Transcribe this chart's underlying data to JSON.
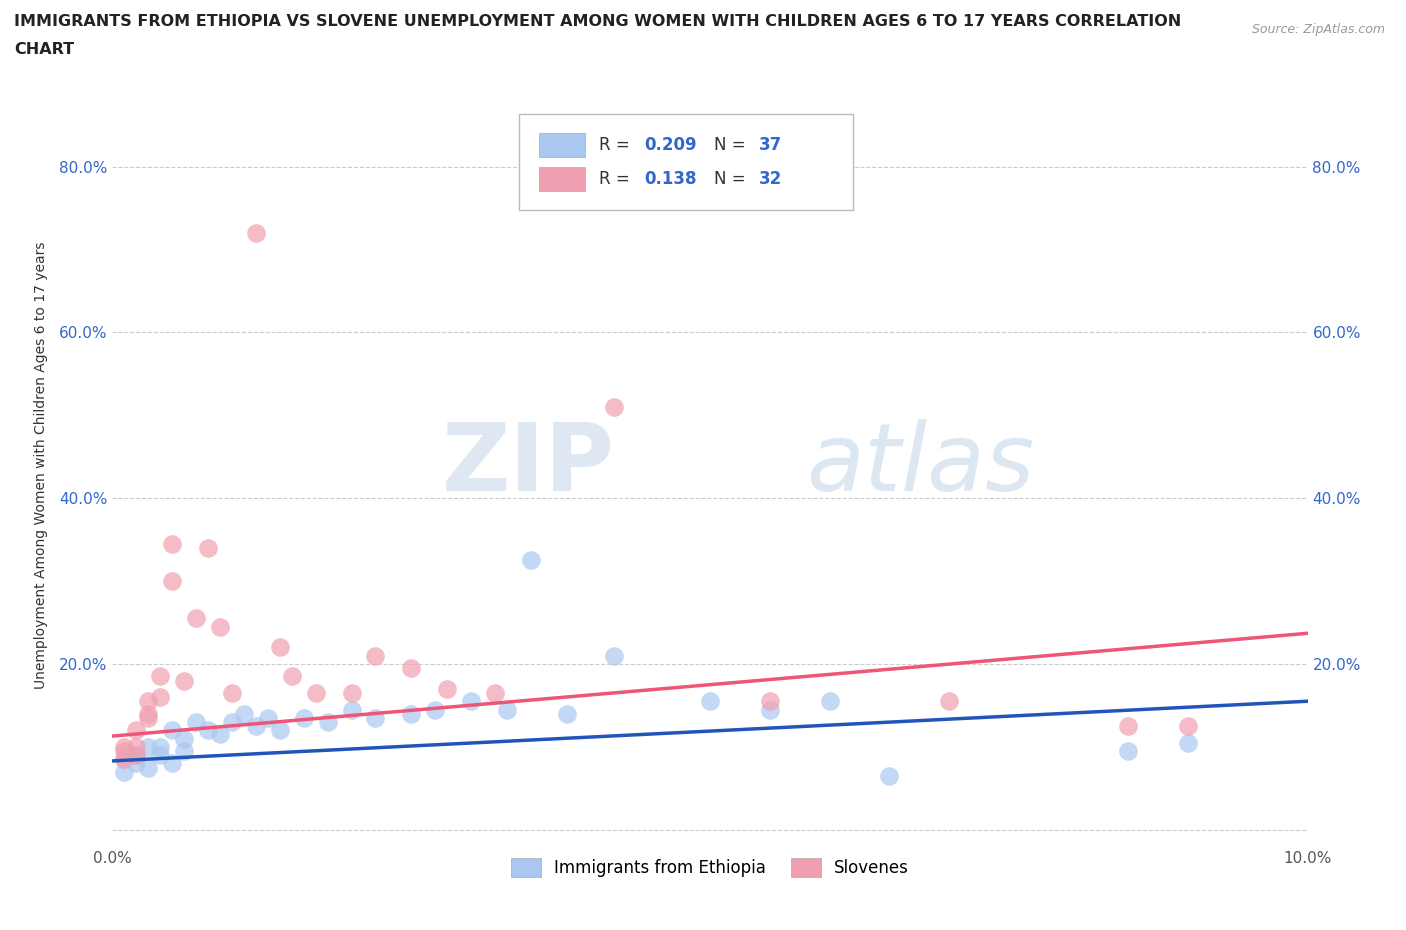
{
  "title_line1": "IMMIGRANTS FROM ETHIOPIA VS SLOVENE UNEMPLOYMENT AMONG WOMEN WITH CHILDREN AGES 6 TO 17 YEARS CORRELATION",
  "title_line2": "CHART",
  "source": "Source: ZipAtlas.com",
  "ylabel": "Unemployment Among Women with Children Ages 6 to 17 years",
  "xlim": [
    0.0,
    0.1
  ],
  "ylim": [
    -0.02,
    0.9
  ],
  "xticks": [
    0.0,
    0.02,
    0.04,
    0.06,
    0.08,
    0.1
  ],
  "yticks": [
    0.0,
    0.2,
    0.4,
    0.6,
    0.8
  ],
  "xticklabels": [
    "0.0%",
    "",
    "",
    "",
    "",
    "10.0%"
  ],
  "yticklabels_left": [
    "",
    "20.0%",
    "40.0%",
    "60.0%",
    "80.0%"
  ],
  "yticklabels_right": [
    "",
    "20.0%",
    "40.0%",
    "60.0%",
    "80.0%"
  ],
  "R_blue": 0.209,
  "N_blue": 37,
  "R_pink": 0.138,
  "N_pink": 32,
  "blue_scatter_color": "#A8C8F0",
  "pink_scatter_color": "#F0A0B0",
  "blue_line_color": "#2255BB",
  "pink_line_color": "#EE5577",
  "watermark_color": "#C8D8EC",
  "background_color": "#FFFFFF",
  "grid_color": "#CCCCCC",
  "scatter_blue": [
    [
      0.001,
      0.085
    ],
    [
      0.001,
      0.07
    ],
    [
      0.002,
      0.09
    ],
    [
      0.002,
      0.08
    ],
    [
      0.003,
      0.1
    ],
    [
      0.003,
      0.075
    ],
    [
      0.004,
      0.09
    ],
    [
      0.004,
      0.1
    ],
    [
      0.005,
      0.12
    ],
    [
      0.005,
      0.08
    ],
    [
      0.006,
      0.11
    ],
    [
      0.006,
      0.095
    ],
    [
      0.007,
      0.13
    ],
    [
      0.008,
      0.12
    ],
    [
      0.009,
      0.115
    ],
    [
      0.01,
      0.13
    ],
    [
      0.011,
      0.14
    ],
    [
      0.012,
      0.125
    ],
    [
      0.013,
      0.135
    ],
    [
      0.014,
      0.12
    ],
    [
      0.016,
      0.135
    ],
    [
      0.018,
      0.13
    ],
    [
      0.02,
      0.145
    ],
    [
      0.022,
      0.135
    ],
    [
      0.025,
      0.14
    ],
    [
      0.027,
      0.145
    ],
    [
      0.03,
      0.155
    ],
    [
      0.033,
      0.145
    ],
    [
      0.035,
      0.325
    ],
    [
      0.038,
      0.14
    ],
    [
      0.042,
      0.21
    ],
    [
      0.05,
      0.155
    ],
    [
      0.055,
      0.145
    ],
    [
      0.06,
      0.155
    ],
    [
      0.065,
      0.065
    ],
    [
      0.085,
      0.095
    ],
    [
      0.09,
      0.105
    ]
  ],
  "scatter_pink": [
    [
      0.001,
      0.085
    ],
    [
      0.001,
      0.1
    ],
    [
      0.001,
      0.095
    ],
    [
      0.002,
      0.09
    ],
    [
      0.002,
      0.1
    ],
    [
      0.002,
      0.12
    ],
    [
      0.003,
      0.155
    ],
    [
      0.003,
      0.135
    ],
    [
      0.003,
      0.14
    ],
    [
      0.004,
      0.185
    ],
    [
      0.004,
      0.16
    ],
    [
      0.005,
      0.345
    ],
    [
      0.005,
      0.3
    ],
    [
      0.006,
      0.18
    ],
    [
      0.007,
      0.255
    ],
    [
      0.008,
      0.34
    ],
    [
      0.009,
      0.245
    ],
    [
      0.01,
      0.165
    ],
    [
      0.012,
      0.72
    ],
    [
      0.014,
      0.22
    ],
    [
      0.015,
      0.185
    ],
    [
      0.017,
      0.165
    ],
    [
      0.02,
      0.165
    ],
    [
      0.022,
      0.21
    ],
    [
      0.025,
      0.195
    ],
    [
      0.028,
      0.17
    ],
    [
      0.032,
      0.165
    ],
    [
      0.042,
      0.51
    ],
    [
      0.055,
      0.155
    ],
    [
      0.07,
      0.155
    ],
    [
      0.085,
      0.125
    ],
    [
      0.09,
      0.125
    ]
  ]
}
